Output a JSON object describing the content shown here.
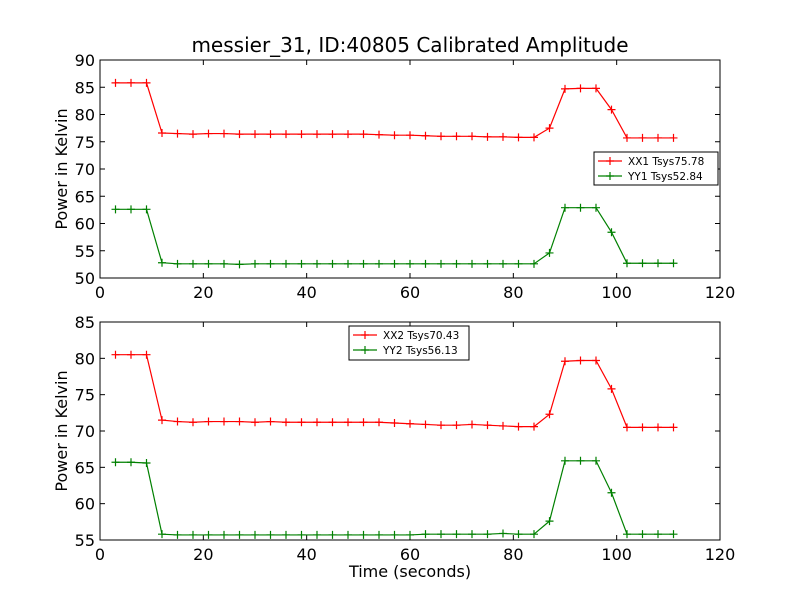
{
  "title": "messier_31, ID:40805 Calibrated Amplitude",
  "xlabel": "Time (seconds)",
  "chart_data": [
    {
      "type": "line",
      "title": "messier_31, ID:40805 Calibrated Amplitude",
      "xlabel": "",
      "ylabel": "Power in Kelvin",
      "xlim": [
        0,
        120
      ],
      "ylim": [
        50,
        90
      ],
      "xticks": [
        0,
        20,
        40,
        60,
        80,
        100,
        120
      ],
      "yticks": [
        50,
        55,
        60,
        65,
        70,
        75,
        80,
        85,
        90
      ],
      "grid": false,
      "legend_position": "center-right",
      "x": [
        3,
        6,
        9,
        12,
        15,
        18,
        21,
        24,
        27,
        30,
        33,
        36,
        39,
        42,
        45,
        48,
        51,
        54,
        57,
        60,
        63,
        66,
        69,
        72,
        75,
        78,
        81,
        84,
        87,
        90,
        93,
        96,
        99,
        102,
        105,
        108,
        111
      ],
      "series": [
        {
          "name": "XX1 Tsys75.78",
          "color": "#ff0000",
          "values": [
            85.8,
            85.8,
            85.8,
            76.6,
            76.5,
            76.4,
            76.5,
            76.5,
            76.4,
            76.4,
            76.4,
            76.4,
            76.4,
            76.4,
            76.4,
            76.4,
            76.4,
            76.3,
            76.2,
            76.2,
            76.1,
            76.0,
            76.0,
            76.0,
            75.9,
            75.9,
            75.8,
            75.8,
            77.5,
            84.7,
            84.8,
            84.8,
            80.9,
            75.7,
            75.7,
            75.7,
            75.7
          ]
        },
        {
          "name": "YY1 Tsys52.84",
          "color": "#008000",
          "values": [
            62.6,
            62.6,
            62.6,
            52.8,
            52.6,
            52.6,
            52.6,
            52.6,
            52.5,
            52.6,
            52.6,
            52.6,
            52.6,
            52.6,
            52.6,
            52.6,
            52.6,
            52.6,
            52.6,
            52.6,
            52.6,
            52.6,
            52.6,
            52.6,
            52.6,
            52.6,
            52.6,
            52.6,
            54.6,
            62.9,
            62.9,
            62.9,
            58.4,
            52.7,
            52.7,
            52.7,
            52.7
          ]
        }
      ]
    },
    {
      "type": "line",
      "title": "",
      "xlabel": "Time (seconds)",
      "ylabel": "Power in Kelvin",
      "xlim": [
        0,
        120
      ],
      "ylim": [
        55,
        85
      ],
      "xticks": [
        0,
        20,
        40,
        60,
        80,
        100,
        120
      ],
      "yticks": [
        55,
        60,
        65,
        70,
        75,
        80,
        85
      ],
      "grid": false,
      "legend_position": "top-center",
      "x": [
        3,
        6,
        9,
        12,
        15,
        18,
        21,
        24,
        27,
        30,
        33,
        36,
        39,
        42,
        45,
        48,
        51,
        54,
        57,
        60,
        63,
        66,
        69,
        72,
        75,
        78,
        81,
        84,
        87,
        90,
        93,
        96,
        99,
        102,
        105,
        108,
        111
      ],
      "series": [
        {
          "name": "XX2 Tsys70.43",
          "color": "#ff0000",
          "values": [
            80.5,
            80.5,
            80.5,
            71.5,
            71.3,
            71.2,
            71.3,
            71.3,
            71.3,
            71.2,
            71.3,
            71.2,
            71.2,
            71.2,
            71.2,
            71.2,
            71.2,
            71.2,
            71.1,
            71.0,
            70.9,
            70.8,
            70.8,
            70.9,
            70.8,
            70.7,
            70.6,
            70.6,
            72.3,
            79.6,
            79.7,
            79.7,
            75.8,
            70.5,
            70.5,
            70.5,
            70.5
          ]
        },
        {
          "name": "YY2 Tsys56.13",
          "color": "#008000",
          "values": [
            65.7,
            65.7,
            65.6,
            55.8,
            55.7,
            55.7,
            55.7,
            55.7,
            55.7,
            55.7,
            55.7,
            55.7,
            55.7,
            55.7,
            55.7,
            55.7,
            55.7,
            55.7,
            55.7,
            55.7,
            55.8,
            55.8,
            55.8,
            55.8,
            55.8,
            55.9,
            55.8,
            55.8,
            57.6,
            65.9,
            65.9,
            65.9,
            61.5,
            55.8,
            55.8,
            55.8,
            55.8
          ]
        }
      ]
    }
  ]
}
